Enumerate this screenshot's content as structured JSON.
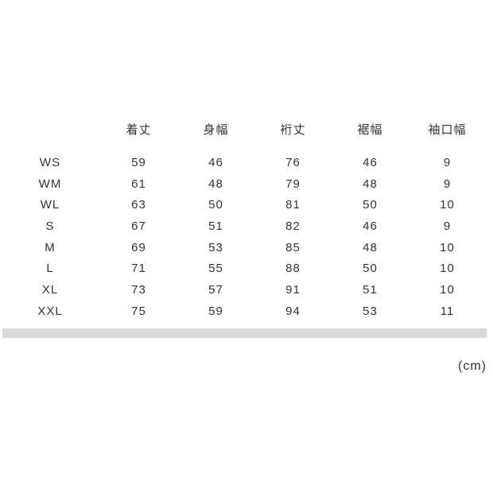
{
  "table": {
    "columns": [
      "",
      "着丈",
      "身幅",
      "裄丈",
      "裾幅",
      "袖口幅"
    ],
    "rows": [
      {
        "size": "WS",
        "values": [
          "59",
          "46",
          "76",
          "46",
          "9"
        ]
      },
      {
        "size": "WM",
        "values": [
          "61",
          "48",
          "79",
          "48",
          "9"
        ]
      },
      {
        "size": "WL",
        "values": [
          "63",
          "50",
          "81",
          "50",
          "10"
        ]
      },
      {
        "size": "S",
        "values": [
          "67",
          "51",
          "82",
          "46",
          "9"
        ]
      },
      {
        "size": "M",
        "values": [
          "69",
          "53",
          "85",
          "48",
          "10"
        ]
      },
      {
        "size": "L",
        "values": [
          "71",
          "55",
          "88",
          "50",
          "10"
        ]
      },
      {
        "size": "XL",
        "values": [
          "73",
          "57",
          "91",
          "51",
          "10"
        ]
      },
      {
        "size": "XXL",
        "values": [
          "75",
          "59",
          "94",
          "53",
          "11"
        ]
      }
    ]
  },
  "unit_label": "(cm)",
  "colors": {
    "text": "#333333",
    "divider": "#d9d9d9",
    "background": "#ffffff"
  }
}
